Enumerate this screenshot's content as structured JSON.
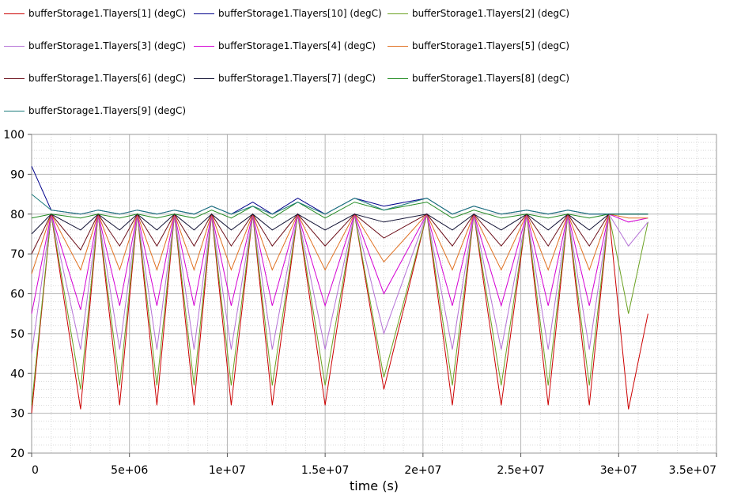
{
  "chart_data": {
    "type": "line",
    "xlabel": "time (s)",
    "ylabel": "",
    "xlim": [
      0,
      35000000
    ],
    "ylim": [
      20,
      100
    ],
    "x_ticks": [
      0,
      5000000,
      10000000,
      15000000,
      20000000,
      25000000,
      30000000,
      35000000
    ],
    "x_tick_labels": [
      "0",
      "5e+06",
      "1e+07",
      "1.5e+07",
      "2e+07",
      "2.5e+07",
      "3e+07",
      "3.5e+07"
    ],
    "y_ticks": [
      20,
      30,
      40,
      50,
      60,
      70,
      80,
      90,
      100
    ],
    "y_tick_labels": [
      "20",
      "30",
      "40",
      "50",
      "60",
      "70",
      "80",
      "90",
      "100"
    ],
    "grid": true,
    "legend_position": "top",
    "x": [
      0,
      1000000,
      2500000,
      3400000,
      4500000,
      5400000,
      6400000,
      7300000,
      8300000,
      9200000,
      10200000,
      11300000,
      12300000,
      13600000,
      15000000,
      16500000,
      18000000,
      20200000,
      21500000,
      22600000,
      24000000,
      25300000,
      26400000,
      27400000,
      28500000,
      29500000,
      30500000,
      31500000
    ],
    "series": [
      {
        "name": "bufferStorage1.Tlayers[1] (degC)",
        "color": "#cc0000",
        "values": [
          30,
          80,
          31,
          80,
          32,
          80,
          32,
          80,
          32,
          80,
          32,
          80,
          32,
          80,
          32,
          80,
          36,
          80,
          32,
          80,
          32,
          80,
          32,
          80,
          32,
          80,
          31,
          55
        ]
      },
      {
        "name": "bufferStorage1.Tlayers[10] (degC)",
        "color": "#00008b",
        "values": [
          92,
          81,
          80,
          81,
          80,
          81,
          80,
          81,
          80,
          82,
          80,
          83,
          80,
          84,
          80,
          84,
          82,
          84,
          80,
          82,
          80,
          81,
          80,
          81,
          80,
          80,
          80,
          80
        ]
      },
      {
        "name": "bufferStorage1.Tlayers[2] (degC)",
        "color": "#6aa121",
        "values": [
          32,
          80,
          36,
          80,
          37,
          80,
          37,
          80,
          37,
          80,
          37,
          80,
          37,
          80,
          37,
          80,
          39,
          80,
          37,
          80,
          37,
          80,
          37,
          80,
          37,
          80,
          55,
          78
        ]
      },
      {
        "name": "bufferStorage1.Tlayers[3] (degC)",
        "color": "#b572d6",
        "values": [
          45,
          80,
          46,
          80,
          46,
          80,
          46,
          80,
          46,
          80,
          46,
          80,
          46,
          80,
          46,
          80,
          50,
          80,
          46,
          80,
          46,
          80,
          46,
          80,
          46,
          80,
          72,
          78
        ]
      },
      {
        "name": "bufferStorage1.Tlayers[4] (degC)",
        "color": "#d400d4",
        "values": [
          55,
          80,
          56,
          80,
          57,
          80,
          57,
          80,
          57,
          80,
          57,
          80,
          57,
          80,
          57,
          80,
          60,
          80,
          57,
          80,
          57,
          80,
          57,
          80,
          57,
          80,
          78,
          79
        ]
      },
      {
        "name": "bufferStorage1.Tlayers[5] (degC)",
        "color": "#e07020",
        "values": [
          65,
          80,
          66,
          80,
          66,
          80,
          66,
          80,
          66,
          80,
          66,
          80,
          66,
          80,
          66,
          80,
          68,
          80,
          66,
          80,
          66,
          80,
          66,
          80,
          66,
          80,
          79,
          79
        ]
      },
      {
        "name": "bufferStorage1.Tlayers[6] (degC)",
        "color": "#6b0f1a",
        "values": [
          70,
          80,
          71,
          80,
          72,
          80,
          72,
          80,
          72,
          80,
          72,
          80,
          72,
          80,
          72,
          80,
          74,
          80,
          72,
          80,
          72,
          80,
          72,
          80,
          72,
          80,
          80,
          80
        ]
      },
      {
        "name": "bufferStorage1.Tlayers[7] (degC)",
        "color": "#111133",
        "values": [
          75,
          80,
          76,
          80,
          76,
          80,
          76,
          80,
          76,
          80,
          76,
          80,
          76,
          80,
          76,
          80,
          78,
          80,
          76,
          80,
          76,
          80,
          76,
          80,
          76,
          80,
          80,
          80
        ]
      },
      {
        "name": "bufferStorage1.Tlayers[8] (degC)",
        "color": "#228b22",
        "values": [
          79,
          80,
          79,
          80,
          79,
          80,
          79,
          80,
          79,
          81,
          79,
          82,
          79,
          83,
          79,
          83,
          81,
          83,
          79,
          81,
          79,
          80,
          79,
          80,
          79,
          80,
          80,
          80
        ]
      },
      {
        "name": "bufferStorage1.Tlayers[9] (degC)",
        "color": "#1a7a7a",
        "values": [
          85,
          81,
          80,
          81,
          80,
          81,
          80,
          81,
          80,
          82,
          80,
          82,
          80,
          83,
          80,
          84,
          81,
          84,
          80,
          82,
          80,
          81,
          80,
          81,
          80,
          80,
          80,
          80
        ]
      }
    ]
  }
}
